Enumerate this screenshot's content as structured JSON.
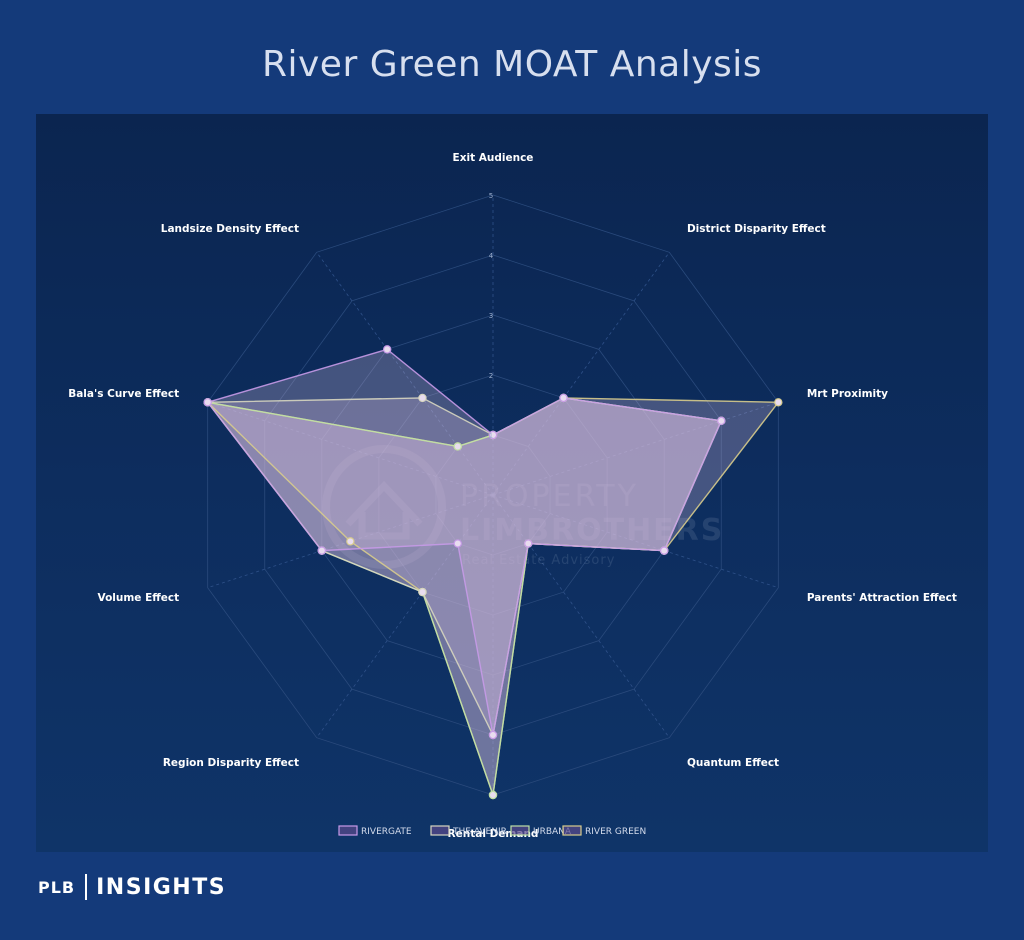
{
  "page": {
    "title": "River Green MOAT Analysis",
    "brand_plb": "PLB",
    "brand_insights": "INSIGHTS"
  },
  "chart_data": {
    "type": "radar",
    "axes": [
      "Exit Audience",
      "District Disparity Effect",
      "Mrt Proximity",
      "Parents' Attraction Effect",
      "Quantum Effect",
      "Rental Demand",
      "Region Disparity Effect",
      "Volume Effect",
      "Bala's Curve Effect",
      "Landsize Density Effect"
    ],
    "rlim": [
      0,
      5
    ],
    "ticks": [
      "1",
      "2",
      "3",
      "4",
      "5"
    ],
    "grid": true,
    "legend_position": "bottom",
    "series": [
      {
        "name": "RIVERGATE",
        "values": [
          1,
          2,
          4,
          3,
          1,
          4,
          1,
          3,
          5,
          3
        ],
        "color": "#c79ae8"
      },
      {
        "name": "THE AVENIR",
        "values": [
          1,
          2,
          4,
          3,
          1,
          4,
          2,
          3,
          5,
          2
        ],
        "color": "#d7d6c0"
      },
      {
        "name": "URBANA",
        "values": [
          1,
          2,
          4,
          3,
          1,
          5,
          2,
          3,
          5,
          1
        ],
        "color": "#bfe0a6"
      },
      {
        "name": "RIVER GREEN",
        "values": [
          1,
          2,
          5,
          3,
          1,
          5,
          2,
          2.5,
          5,
          1
        ],
        "color": "#d8cc8c"
      }
    ],
    "watermark": [
      "PROPERTY",
      "LIMBROTHERS",
      "Real Estate Advisory"
    ]
  },
  "colors": {
    "background": "#143a7a",
    "panel": "#0c2a58",
    "fill": "#d4bcd6",
    "outline_top": "#d9a6f0",
    "outline_green": "#bfe0a6",
    "outline_yellow": "#d8cc8c"
  }
}
